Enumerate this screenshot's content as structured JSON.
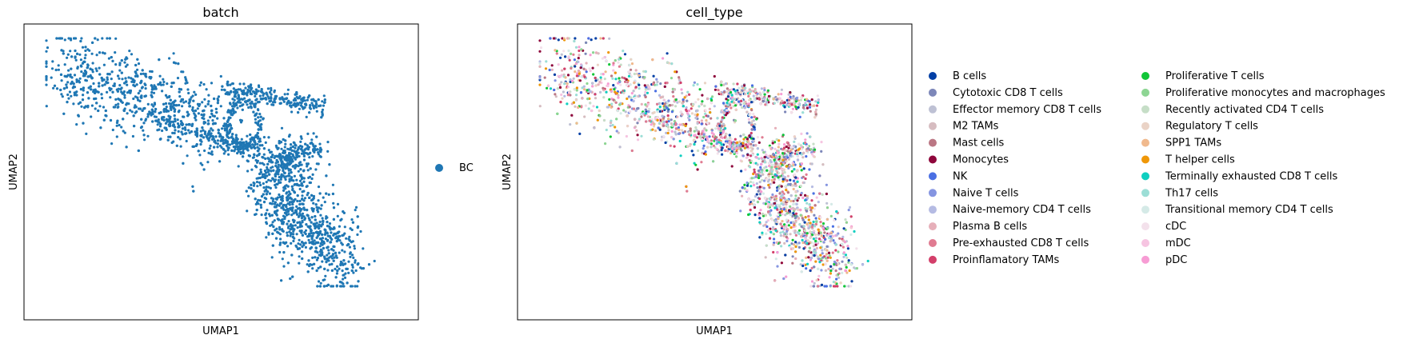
{
  "chart_data": [
    {
      "type": "scatter",
      "title": "batch",
      "xlabel": "UMAP1",
      "ylabel": "UMAP2",
      "grid": false,
      "ticks": false,
      "legend_placement": "right",
      "legend": [
        {
          "name": "BC",
          "color": "#1f77b4"
        }
      ],
      "points_note_count": 3200
    },
    {
      "type": "scatter",
      "title": "cell_type",
      "xlabel": "UMAP1",
      "ylabel": "UMAP2",
      "grid": false,
      "ticks": false,
      "legend_placement": "right",
      "legend": [
        {
          "name": "B cells",
          "color": "#023fa5"
        },
        {
          "name": "Cytotoxic CD8 T cells",
          "color": "#7d87b9"
        },
        {
          "name": "Effector memory CD8 T cells",
          "color": "#bec1d4"
        },
        {
          "name": "M2 TAMs",
          "color": "#d6bcc0"
        },
        {
          "name": "Mast cells",
          "color": "#bb7784"
        },
        {
          "name": "Monocytes",
          "color": "#8e063b"
        },
        {
          "name": "NK",
          "color": "#4a6fe3"
        },
        {
          "name": "Naive T cells",
          "color": "#8595e1"
        },
        {
          "name": "Naive-memory CD4 T cells",
          "color": "#b5bbe3"
        },
        {
          "name": "Plasma B cells",
          "color": "#e6afb9"
        },
        {
          "name": "Pre-exhausted CD8 T cells",
          "color": "#e07b91"
        },
        {
          "name": "Proinflamatory TAMs",
          "color": "#d33f6a"
        },
        {
          "name": "Proliferative T cells",
          "color": "#11c638"
        },
        {
          "name": "Proliferative monocytes and macrophages",
          "color": "#8dd593"
        },
        {
          "name": "Recently activated CD4 T cells",
          "color": "#c6dec7"
        },
        {
          "name": "Regulatory T cells",
          "color": "#ead3c6"
        },
        {
          "name": "SPP1 TAMs",
          "color": "#f0b98d"
        },
        {
          "name": "T helper cells",
          "color": "#ef9708"
        },
        {
          "name": "Terminally exhausted CD8 T cells",
          "color": "#0fcfc0"
        },
        {
          "name": "Th17 cells",
          "color": "#9cded6"
        },
        {
          "name": "Transitional memory CD4 T cells",
          "color": "#d5eae7"
        },
        {
          "name": "cDC",
          "color": "#f3e1eb"
        },
        {
          "name": "mDC",
          "color": "#f6c4e1"
        },
        {
          "name": "pDC",
          "color": "#f79cd4"
        }
      ]
    }
  ]
}
